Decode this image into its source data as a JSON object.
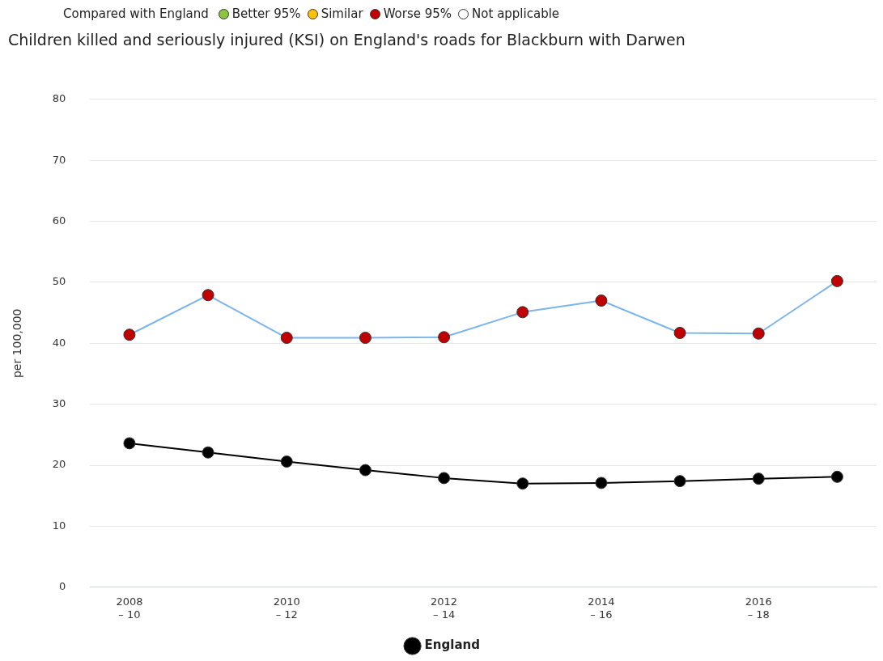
{
  "chart_data": {
    "type": "line",
    "title": "Children killed and seriously injured (KSI) on England's roads for Blackburn with Darwen",
    "legend_title": "Compared with England",
    "annotations": [
      "Better 95%",
      "Similar",
      "Worse 95%",
      "Not applicable"
    ],
    "ylabel": "per 100,000",
    "categories": [
      "2008 – 10",
      null,
      "2010 – 12",
      null,
      "2012 – 14",
      null,
      "2014 – 16",
      null,
      "2016 – 18",
      null
    ],
    "series": [
      {
        "color": "#7cb5ec",
        "colors": [
          "#c00000",
          "#c00000",
          "#c00000",
          "#c00000",
          "#c00000",
          "#c00000",
          "#c00000",
          "#c00000",
          "#c00000",
          "#c00000"
        ],
        "values": [
          41.4,
          47.9,
          40.9,
          40.9,
          41.0,
          45.1,
          47.0,
          41.7,
          41.6,
          50.2
        ]
      },
      {
        "name": "England",
        "color": "#000000",
        "values": [
          23.6,
          22.1,
          20.6,
          19.2,
          17.9,
          17.0,
          17.1,
          17.4,
          17.8,
          18.1
        ]
      }
    ],
    "ylim": [
      0,
      80
    ],
    "yticks": [
      0,
      10,
      20,
      30,
      40,
      50,
      60,
      70,
      80
    ],
    "grid": "y",
    "legend": "bottom",
    "marker": "circle"
  }
}
